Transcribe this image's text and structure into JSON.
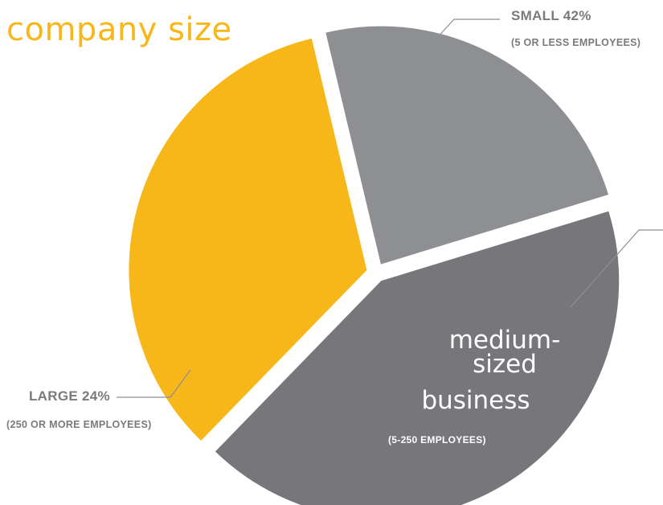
{
  "title": "company size",
  "chart_data": {
    "type": "pie",
    "title": "company size",
    "slices": [
      {
        "key": "small",
        "value": 42,
        "color": "#77777b",
        "label": "SMALL 42%",
        "sublabel": "(5 OR LESS EMPLOYEES)"
      },
      {
        "key": "medium",
        "value": 34,
        "color": "#f7b718",
        "label": "medium-sized business",
        "sublabel": "(5-250 EMPLOYEES)"
      },
      {
        "key": "large",
        "value": 24,
        "color": "#8e8f93",
        "label": "LARGE 24%",
        "sublabel": "(250 OR MORE EMPLOYEES)"
      }
    ]
  },
  "labels": {
    "small": "SMALL 42%",
    "small_sub": "(5 OR LESS EMPLOYEES)",
    "large": "LARGE 24%",
    "large_sub": "(250 OR MORE EMPLOYEES)",
    "medium_line1": "medium-",
    "medium_line2": "sized",
    "medium_line3": "business",
    "medium_sub": "(5-250 EMPLOYEES)"
  }
}
